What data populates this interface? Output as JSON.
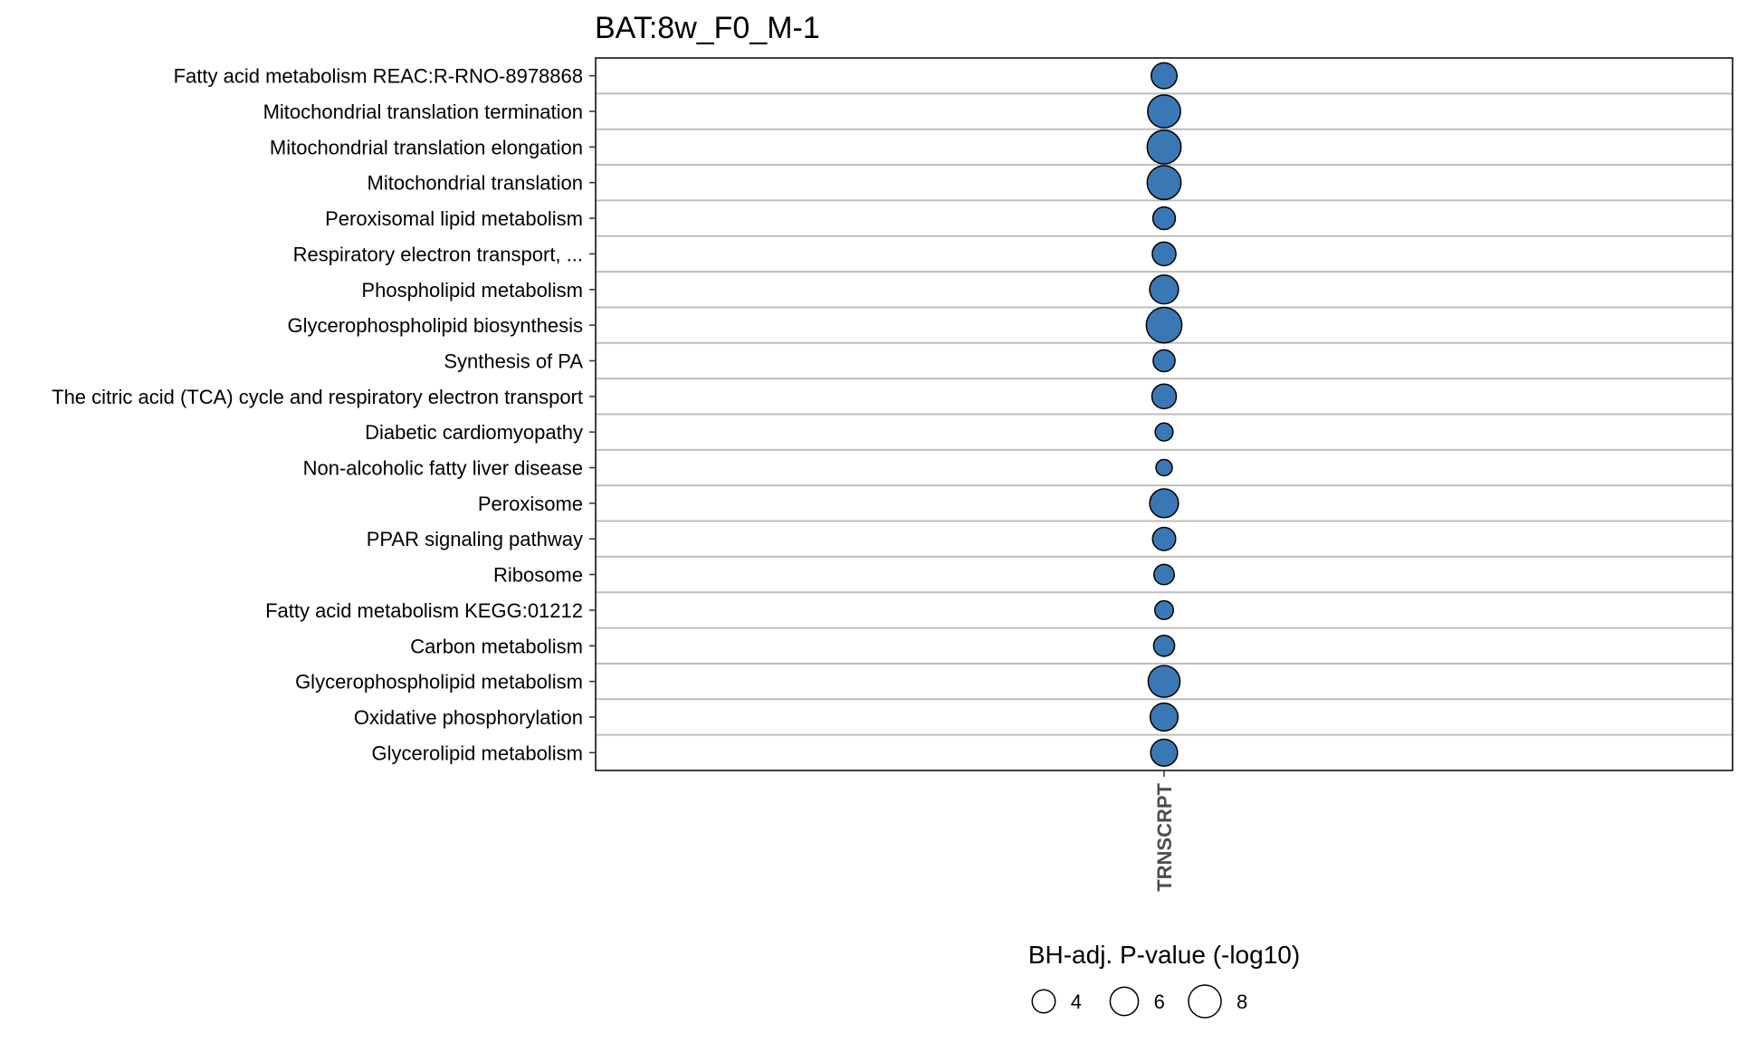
{
  "chart_data": {
    "type": "scatter",
    "title": "BAT:8w_F0_M-1",
    "x_categories": [
      "TRNSCRPT"
    ],
    "y_categories": [
      "Fatty acid metabolism REAC:R-RNO-8978868",
      "Mitochondrial translation termination",
      "Mitochondrial translation elongation",
      "Mitochondrial translation",
      "Peroxisomal lipid metabolism",
      "Respiratory electron transport, ...",
      "Phospholipid metabolism",
      "Glycerophospholipid biosynthesis",
      "Synthesis of PA",
      "The citric acid (TCA) cycle and respiratory electron transport",
      "Diabetic cardiomyopathy",
      "Non-alcoholic fatty liver disease",
      "Peroxisome",
      "PPAR signaling pathway",
      "Ribosome",
      "Fatty acid metabolism KEGG:01212",
      "Carbon metabolism",
      "Glycerophospholipid metabolism",
      "Oxidative phosphorylation",
      "Glycerolipid metabolism"
    ],
    "series": [
      {
        "x": "TRNSCRPT",
        "size_values": [
          5.0,
          8.1,
          8.6,
          8.6,
          3.8,
          4.2,
          6.2,
          9.5,
          3.6,
          4.5,
          2.4,
          2.0,
          6.2,
          4.0,
          3.1,
          2.6,
          3.3,
          7.6,
          5.8,
          5.4
        ]
      }
    ],
    "size_legend": {
      "title": "BH-adj. P-value (-log10)",
      "values": [
        4,
        6,
        8
      ],
      "labels": [
        "4",
        "6",
        "8"
      ]
    },
    "point_fill": "#3a78b5",
    "point_stroke": "#000000",
    "grid_color": "#bdbdbd",
    "grid": true
  }
}
